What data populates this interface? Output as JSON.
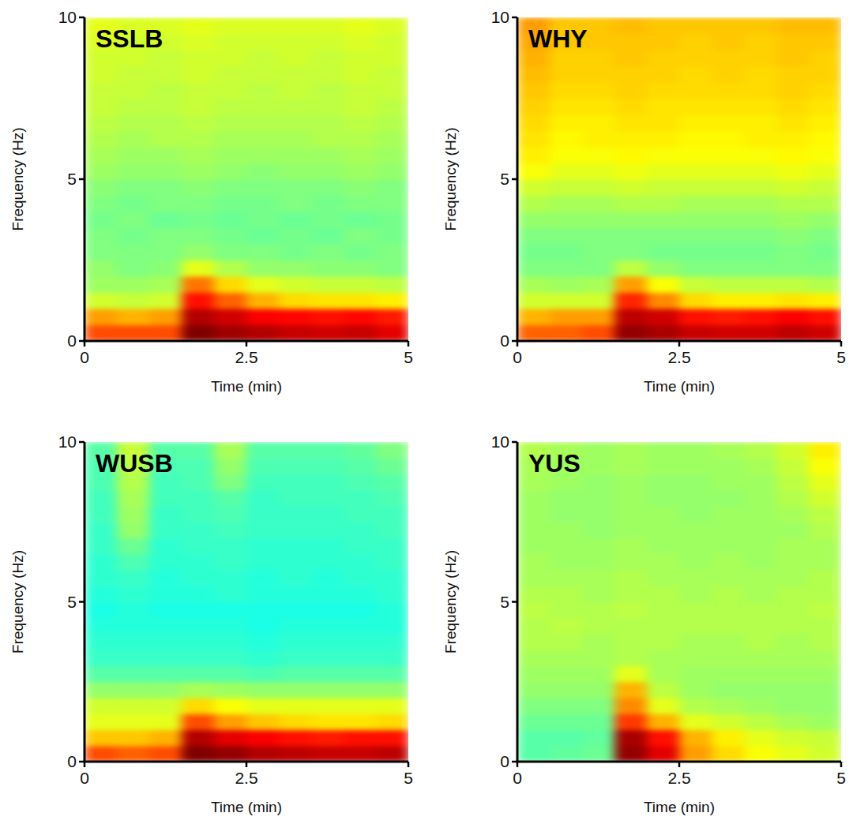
{
  "chart_data": [
    {
      "type": "heatmap",
      "title": "SSLB",
      "x_label": "Time (min)",
      "y_label": "Frequency (Hz)",
      "xlim": [
        0,
        5
      ],
      "ylim": [
        0,
        10
      ],
      "xticks": [
        0,
        2.5,
        5
      ],
      "yticks": [
        0,
        5,
        10
      ],
      "color": "jet",
      "zlim": [
        0,
        1
      ],
      "x_bins": [
        0,
        0.5,
        1,
        1.5,
        2,
        2.5,
        3,
        3.5,
        4,
        4.5,
        5
      ],
      "y_bins": [
        0,
        0.5,
        1,
        1.5,
        2,
        2.5,
        3,
        3.5,
        4,
        4.5,
        5,
        5.5,
        6,
        6.5,
        7,
        7.5,
        8,
        8.5,
        9,
        9.5,
        10
      ],
      "cells": [
        [
          0.8,
          0.8,
          0.8,
          1.0,
          0.97,
          0.95,
          0.93,
          0.92,
          0.93,
          0.9
        ],
        [
          0.72,
          0.7,
          0.72,
          0.95,
          0.92,
          0.88,
          0.87,
          0.86,
          0.87,
          0.85
        ],
        [
          0.58,
          0.57,
          0.58,
          0.86,
          0.78,
          0.7,
          0.66,
          0.65,
          0.65,
          0.64
        ],
        [
          0.53,
          0.53,
          0.54,
          0.76,
          0.66,
          0.6,
          0.58,
          0.57,
          0.57,
          0.56
        ],
        [
          0.52,
          0.5,
          0.51,
          0.6,
          0.55,
          0.52,
          0.52,
          0.51,
          0.51,
          0.5
        ],
        [
          0.5,
          0.5,
          0.5,
          0.52,
          0.5,
          0.5,
          0.49,
          0.5,
          0.49,
          0.5
        ],
        [
          0.5,
          0.49,
          0.5,
          0.5,
          0.49,
          0.48,
          0.49,
          0.48,
          0.5,
          0.49
        ],
        [
          0.49,
          0.5,
          0.48,
          0.49,
          0.48,
          0.49,
          0.48,
          0.49,
          0.48,
          0.49
        ],
        [
          0.5,
          0.49,
          0.5,
          0.5,
          0.49,
          0.49,
          0.5,
          0.49,
          0.5,
          0.5
        ],
        [
          0.51,
          0.5,
          0.5,
          0.51,
          0.5,
          0.5,
          0.5,
          0.5,
          0.51,
          0.5
        ],
        [
          0.53,
          0.52,
          0.52,
          0.53,
          0.52,
          0.51,
          0.52,
          0.52,
          0.53,
          0.52
        ],
        [
          0.54,
          0.53,
          0.53,
          0.54,
          0.53,
          0.53,
          0.53,
          0.53,
          0.54,
          0.53
        ],
        [
          0.55,
          0.54,
          0.55,
          0.55,
          0.54,
          0.54,
          0.54,
          0.55,
          0.55,
          0.54
        ],
        [
          0.56,
          0.55,
          0.55,
          0.56,
          0.55,
          0.55,
          0.55,
          0.55,
          0.56,
          0.55
        ],
        [
          0.57,
          0.56,
          0.56,
          0.57,
          0.56,
          0.56,
          0.56,
          0.56,
          0.57,
          0.56
        ],
        [
          0.57,
          0.57,
          0.56,
          0.57,
          0.57,
          0.56,
          0.57,
          0.56,
          0.57,
          0.57
        ],
        [
          0.58,
          0.57,
          0.57,
          0.58,
          0.57,
          0.57,
          0.57,
          0.57,
          0.58,
          0.57
        ],
        [
          0.58,
          0.58,
          0.57,
          0.58,
          0.58,
          0.57,
          0.58,
          0.57,
          0.58,
          0.58
        ],
        [
          0.59,
          0.58,
          0.58,
          0.59,
          0.58,
          0.58,
          0.58,
          0.58,
          0.59,
          0.58
        ],
        [
          0.6,
          0.59,
          0.59,
          0.6,
          0.59,
          0.59,
          0.59,
          0.59,
          0.6,
          0.59
        ]
      ]
    },
    {
      "type": "heatmap",
      "title": "WHY",
      "x_label": "Time (min)",
      "y_label": "Frequency (Hz)",
      "xlim": [
        0,
        5
      ],
      "ylim": [
        0,
        10
      ],
      "xticks": [
        0,
        2.5,
        5
      ],
      "yticks": [
        0,
        5,
        10
      ],
      "color": "jet",
      "zlim": [
        0,
        1
      ],
      "x_bins": [
        0,
        0.5,
        1,
        1.5,
        2,
        2.5,
        3,
        3.5,
        4,
        4.5,
        5
      ],
      "y_bins": [
        0,
        0.5,
        1,
        1.5,
        2,
        2.5,
        3,
        3.5,
        4,
        4.5,
        5,
        5.5,
        6,
        6.5,
        7,
        7.5,
        8,
        8.5,
        9,
        9.5,
        10
      ],
      "cells": [
        [
          0.78,
          0.78,
          0.8,
          0.98,
          0.96,
          0.93,
          0.92,
          0.92,
          0.94,
          0.92
        ],
        [
          0.7,
          0.72,
          0.72,
          0.94,
          0.92,
          0.86,
          0.85,
          0.86,
          0.88,
          0.86
        ],
        [
          0.58,
          0.58,
          0.58,
          0.84,
          0.74,
          0.66,
          0.64,
          0.64,
          0.65,
          0.64
        ],
        [
          0.54,
          0.53,
          0.54,
          0.72,
          0.62,
          0.57,
          0.56,
          0.56,
          0.56,
          0.55
        ],
        [
          0.5,
          0.5,
          0.5,
          0.56,
          0.52,
          0.5,
          0.5,
          0.5,
          0.5,
          0.5
        ],
        [
          0.49,
          0.49,
          0.5,
          0.5,
          0.49,
          0.49,
          0.49,
          0.49,
          0.5,
          0.49
        ],
        [
          0.5,
          0.5,
          0.5,
          0.5,
          0.5,
          0.5,
          0.5,
          0.5,
          0.51,
          0.5
        ],
        [
          0.52,
          0.52,
          0.52,
          0.52,
          0.52,
          0.52,
          0.52,
          0.52,
          0.53,
          0.52
        ],
        [
          0.55,
          0.54,
          0.54,
          0.55,
          0.55,
          0.54,
          0.54,
          0.54,
          0.55,
          0.55
        ],
        [
          0.58,
          0.57,
          0.57,
          0.58,
          0.57,
          0.57,
          0.57,
          0.57,
          0.58,
          0.57
        ],
        [
          0.62,
          0.6,
          0.6,
          0.61,
          0.6,
          0.6,
          0.6,
          0.6,
          0.61,
          0.6
        ],
        [
          0.64,
          0.62,
          0.62,
          0.63,
          0.62,
          0.62,
          0.62,
          0.62,
          0.63,
          0.62
        ],
        [
          0.65,
          0.63,
          0.64,
          0.64,
          0.64,
          0.63,
          0.63,
          0.64,
          0.64,
          0.63
        ],
        [
          0.66,
          0.64,
          0.64,
          0.65,
          0.65,
          0.64,
          0.64,
          0.64,
          0.65,
          0.64
        ],
        [
          0.67,
          0.65,
          0.65,
          0.66,
          0.65,
          0.65,
          0.65,
          0.65,
          0.66,
          0.65
        ],
        [
          0.68,
          0.66,
          0.66,
          0.67,
          0.66,
          0.66,
          0.66,
          0.66,
          0.67,
          0.66
        ],
        [
          0.69,
          0.67,
          0.67,
          0.67,
          0.67,
          0.66,
          0.67,
          0.66,
          0.67,
          0.67
        ],
        [
          0.7,
          0.67,
          0.67,
          0.68,
          0.67,
          0.67,
          0.67,
          0.67,
          0.68,
          0.67
        ],
        [
          0.71,
          0.68,
          0.68,
          0.68,
          0.68,
          0.67,
          0.68,
          0.67,
          0.68,
          0.68
        ],
        [
          0.72,
          0.68,
          0.68,
          0.69,
          0.68,
          0.68,
          0.68,
          0.68,
          0.69,
          0.69
        ]
      ]
    },
    {
      "type": "heatmap",
      "title": "WUSB",
      "x_label": "Time (min)",
      "y_label": "Frequency (Hz)",
      "xlim": [
        0,
        5
      ],
      "ylim": [
        0,
        10
      ],
      "xticks": [
        0,
        2.5,
        5
      ],
      "yticks": [
        0,
        5,
        10
      ],
      "color": "jet",
      "zlim": [
        0,
        1
      ],
      "x_bins": [
        0,
        0.5,
        1,
        1.5,
        2,
        2.5,
        3,
        3.5,
        4,
        4.5,
        5
      ],
      "y_bins": [
        0,
        0.5,
        1,
        1.5,
        2,
        2.5,
        3,
        3.5,
        4,
        4.5,
        5,
        5.5,
        6,
        6.5,
        7,
        7.5,
        8,
        8.5,
        9,
        9.5,
        10
      ],
      "cells": [
        [
          0.8,
          0.78,
          0.8,
          1.0,
          0.98,
          0.95,
          0.94,
          0.93,
          0.93,
          0.94
        ],
        [
          0.68,
          0.68,
          0.7,
          0.95,
          0.9,
          0.88,
          0.86,
          0.85,
          0.86,
          0.86
        ],
        [
          0.6,
          0.6,
          0.6,
          0.8,
          0.72,
          0.68,
          0.66,
          0.65,
          0.65,
          0.66
        ],
        [
          0.58,
          0.58,
          0.58,
          0.66,
          0.62,
          0.6,
          0.6,
          0.6,
          0.6,
          0.6
        ],
        [
          0.52,
          0.52,
          0.52,
          0.54,
          0.53,
          0.52,
          0.52,
          0.52,
          0.52,
          0.52
        ],
        [
          0.46,
          0.46,
          0.46,
          0.46,
          0.46,
          0.45,
          0.46,
          0.46,
          0.46,
          0.46
        ],
        [
          0.43,
          0.43,
          0.43,
          0.43,
          0.43,
          0.42,
          0.43,
          0.43,
          0.43,
          0.43
        ],
        [
          0.42,
          0.42,
          0.42,
          0.42,
          0.42,
          0.41,
          0.42,
          0.42,
          0.42,
          0.42
        ],
        [
          0.41,
          0.41,
          0.41,
          0.41,
          0.41,
          0.4,
          0.41,
          0.41,
          0.41,
          0.41
        ],
        [
          0.4,
          0.41,
          0.4,
          0.4,
          0.4,
          0.4,
          0.4,
          0.4,
          0.4,
          0.41
        ],
        [
          0.41,
          0.42,
          0.41,
          0.41,
          0.42,
          0.41,
          0.41,
          0.41,
          0.41,
          0.42
        ],
        [
          0.42,
          0.43,
          0.41,
          0.42,
          0.42,
          0.41,
          0.42,
          0.41,
          0.42,
          0.42
        ],
        [
          0.42,
          0.45,
          0.42,
          0.42,
          0.43,
          0.42,
          0.42,
          0.42,
          0.42,
          0.43
        ],
        [
          0.43,
          0.48,
          0.42,
          0.43,
          0.43,
          0.42,
          0.42,
          0.42,
          0.43,
          0.43
        ],
        [
          0.43,
          0.52,
          0.43,
          0.43,
          0.44,
          0.43,
          0.43,
          0.43,
          0.43,
          0.44
        ],
        [
          0.44,
          0.53,
          0.43,
          0.44,
          0.45,
          0.43,
          0.43,
          0.43,
          0.44,
          0.44
        ],
        [
          0.44,
          0.54,
          0.44,
          0.44,
          0.46,
          0.43,
          0.44,
          0.44,
          0.44,
          0.45
        ],
        [
          0.45,
          0.55,
          0.44,
          0.45,
          0.5,
          0.44,
          0.44,
          0.44,
          0.45,
          0.46
        ],
        [
          0.45,
          0.56,
          0.45,
          0.45,
          0.52,
          0.45,
          0.45,
          0.45,
          0.46,
          0.48
        ],
        [
          0.46,
          0.57,
          0.46,
          0.46,
          0.54,
          0.46,
          0.46,
          0.46,
          0.47,
          0.5
        ]
      ]
    },
    {
      "type": "heatmap",
      "title": "YUS",
      "x_label": "Time (min)",
      "y_label": "Frequency (Hz)",
      "xlim": [
        0,
        5
      ],
      "ylim": [
        0,
        10
      ],
      "xticks": [
        0,
        2.5,
        5
      ],
      "yticks": [
        0,
        5,
        10
      ],
      "color": "jet",
      "zlim": [
        0,
        1
      ],
      "x_bins": [
        0,
        0.5,
        1,
        1.5,
        2,
        2.5,
        3,
        3.5,
        4,
        4.5,
        5
      ],
      "y_bins": [
        0,
        0.5,
        1,
        1.5,
        2,
        2.5,
        3,
        3.5,
        4,
        4.5,
        5,
        5.5,
        6,
        6.5,
        7,
        7.5,
        8,
        8.5,
        9,
        9.5,
        10
      ],
      "cells": [
        [
          0.46,
          0.47,
          0.48,
          0.98,
          0.9,
          0.72,
          0.66,
          0.62,
          0.6,
          0.58
        ],
        [
          0.46,
          0.46,
          0.47,
          0.96,
          0.86,
          0.7,
          0.64,
          0.6,
          0.58,
          0.57
        ],
        [
          0.48,
          0.48,
          0.48,
          0.82,
          0.7,
          0.6,
          0.58,
          0.56,
          0.54,
          0.53
        ],
        [
          0.5,
          0.5,
          0.5,
          0.74,
          0.6,
          0.55,
          0.54,
          0.53,
          0.52,
          0.52
        ],
        [
          0.52,
          0.52,
          0.52,
          0.7,
          0.56,
          0.53,
          0.52,
          0.52,
          0.52,
          0.52
        ],
        [
          0.53,
          0.53,
          0.53,
          0.6,
          0.54,
          0.53,
          0.53,
          0.53,
          0.53,
          0.53
        ],
        [
          0.54,
          0.54,
          0.54,
          0.55,
          0.54,
          0.54,
          0.54,
          0.54,
          0.54,
          0.54
        ],
        [
          0.55,
          0.55,
          0.54,
          0.55,
          0.55,
          0.54,
          0.54,
          0.55,
          0.54,
          0.55
        ],
        [
          0.55,
          0.56,
          0.55,
          0.55,
          0.55,
          0.55,
          0.55,
          0.55,
          0.55,
          0.55
        ],
        [
          0.56,
          0.55,
          0.55,
          0.56,
          0.55,
          0.55,
          0.55,
          0.55,
          0.55,
          0.56
        ],
        [
          0.55,
          0.55,
          0.54,
          0.55,
          0.55,
          0.54,
          0.55,
          0.54,
          0.55,
          0.55
        ],
        [
          0.54,
          0.54,
          0.54,
          0.55,
          0.54,
          0.54,
          0.54,
          0.54,
          0.54,
          0.55
        ],
        [
          0.54,
          0.53,
          0.53,
          0.54,
          0.54,
          0.53,
          0.54,
          0.53,
          0.54,
          0.54
        ],
        [
          0.53,
          0.53,
          0.53,
          0.54,
          0.53,
          0.53,
          0.53,
          0.53,
          0.54,
          0.54
        ],
        [
          0.53,
          0.53,
          0.52,
          0.53,
          0.53,
          0.53,
          0.53,
          0.53,
          0.53,
          0.55
        ],
        [
          0.53,
          0.52,
          0.52,
          0.53,
          0.53,
          0.52,
          0.53,
          0.53,
          0.54,
          0.56
        ],
        [
          0.53,
          0.52,
          0.52,
          0.53,
          0.52,
          0.52,
          0.52,
          0.53,
          0.55,
          0.58
        ],
        [
          0.54,
          0.53,
          0.52,
          0.53,
          0.52,
          0.52,
          0.53,
          0.53,
          0.56,
          0.6
        ],
        [
          0.54,
          0.53,
          0.53,
          0.54,
          0.53,
          0.53,
          0.53,
          0.54,
          0.57,
          0.62
        ],
        [
          0.55,
          0.54,
          0.53,
          0.54,
          0.53,
          0.53,
          0.54,
          0.55,
          0.58,
          0.64
        ]
      ]
    }
  ]
}
